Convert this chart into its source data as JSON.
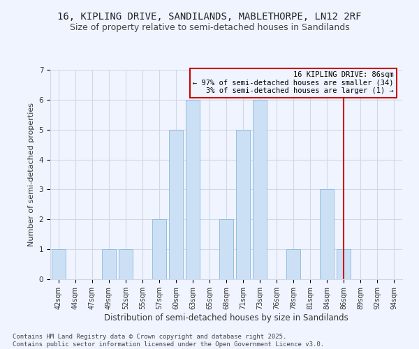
{
  "title1": "16, KIPLING DRIVE, SANDILANDS, MABLETHORPE, LN12 2RF",
  "title2": "Size of property relative to semi-detached houses in Sandilands",
  "xlabel": "Distribution of semi-detached houses by size in Sandilands",
  "ylabel": "Number of semi-detached properties",
  "categories": [
    "42sqm",
    "44sqm",
    "47sqm",
    "49sqm",
    "52sqm",
    "55sqm",
    "57sqm",
    "60sqm",
    "63sqm",
    "65sqm",
    "68sqm",
    "71sqm",
    "73sqm",
    "76sqm",
    "78sqm",
    "81sqm",
    "84sqm",
    "86sqm",
    "89sqm",
    "92sqm",
    "94sqm"
  ],
  "values": [
    1,
    0,
    0,
    1,
    1,
    0,
    2,
    5,
    6,
    0,
    2,
    5,
    6,
    0,
    1,
    0,
    3,
    1,
    0,
    0,
    0
  ],
  "bar_color": "#cce0f5",
  "bar_edgecolor": "#8ab8d8",
  "vline_x_index": 17,
  "vline_color": "#cc0000",
  "annotation_text": "16 KIPLING DRIVE: 86sqm\n← 97% of semi-detached houses are smaller (34)\n3% of semi-detached houses are larger (1) →",
  "annotation_box_color": "#cc0000",
  "ylim": [
    0,
    7
  ],
  "yticks": [
    0,
    1,
    2,
    3,
    4,
    5,
    6,
    7
  ],
  "footer": "Contains HM Land Registry data © Crown copyright and database right 2025.\nContains public sector information licensed under the Open Government Licence v3.0.",
  "bg_color": "#f0f4ff",
  "grid_color": "#d0d8e8",
  "title1_fontsize": 10,
  "title2_fontsize": 9,
  "xlabel_fontsize": 8.5,
  "ylabel_fontsize": 8,
  "tick_fontsize": 7,
  "footer_fontsize": 6.5,
  "annotation_fontsize": 7.5
}
